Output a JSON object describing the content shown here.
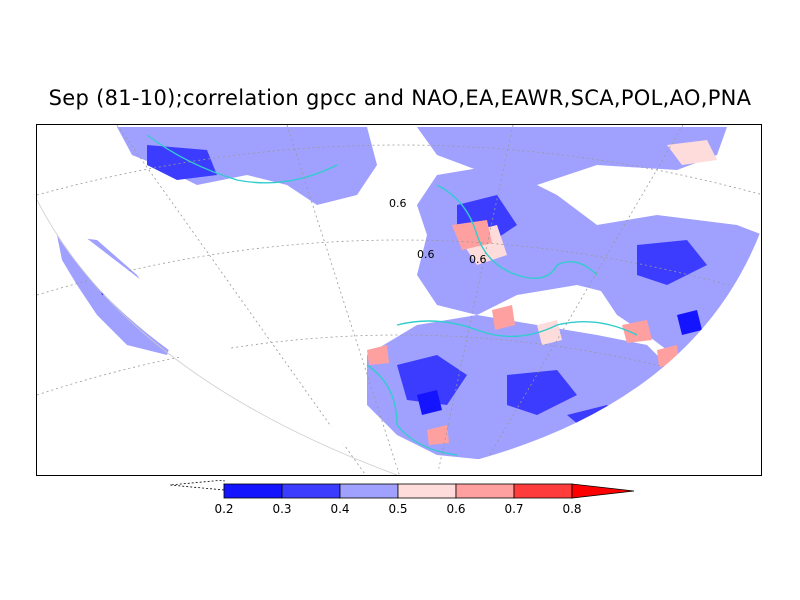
{
  "title": "Sep (81-10);correlation gpcc and NAO,EA,EAWR,SCA,POL,AO,PNA",
  "colors": {
    "c02": "#1414ff",
    "c03": "#3c3cff",
    "c04": "#a0a0ff",
    "c05": "#ffdcdc",
    "c06": "#ffa0a0",
    "c07": "#ff3c3c",
    "c08": "#ff0000",
    "coast": "#33cccc",
    "grid": "#999999"
  },
  "colorbar": {
    "ticks": [
      "0.2",
      "0.3",
      "0.4",
      "0.5",
      "0.6",
      "0.7",
      "0.8"
    ]
  },
  "contour_labels": [
    "0.6",
    "0.6",
    "0.6"
  ]
}
